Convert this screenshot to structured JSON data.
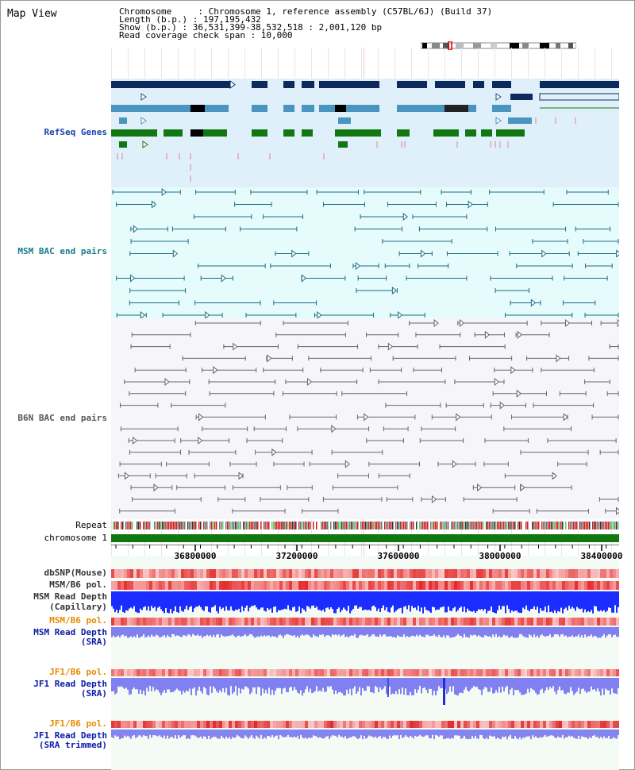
{
  "title": "Map View",
  "info": {
    "line1": "Chromosome     : Chromosome 1, reference assembly (C57BL/6J) (Build 37)",
    "line2": "Length (b.p.) : 197,195,432",
    "line3": "Show (b.p.) : 36,531,399-38,532,518 : 2,001,120 bp",
    "line4": "Read coverage check span : 10,000"
  },
  "labels": {
    "refseq": "RefSeq Genes",
    "msm_bac": "MSM BAC end pairs",
    "b6n_bac": "B6N BAC end pairs",
    "repeat": "Repeat",
    "chromosome": "chromosome 1",
    "dbsnp": "dbSNP(Mouse)",
    "msm_b6_pol": "MSM/B6 pol.",
    "msm_read_depth_cap_1": "MSM Read Depth",
    "msm_read_depth_cap_2": "(Capillary)",
    "msm_b6_pol_2": "MSM/B6 pol.",
    "msm_read_depth_sra_1": "MSM Read Depth",
    "msm_read_depth_sra_2": "(SRA)",
    "jf1_b6_pol": "JF1/B6 pol.",
    "jf1_read_depth_1": "JF1 Read Depth",
    "jf1_read_depth_2": "(SRA)",
    "jf1_b6_pol_2": "JF1/B6 pol.",
    "jf1_trim_1": "JF1 Read Depth",
    "jf1_trim_2": "(SRA trimmed)"
  },
  "axis": {
    "ticks": [
      "36800000",
      "37200000",
      "37600000",
      "38000000",
      "38400000"
    ]
  },
  "colors": {
    "refseq_bg": "#dff0fa",
    "msm_bg": "#e6fbfb",
    "b6n_bg": "#f6f6fa",
    "gene_dark": "#0c2a5c",
    "gene_mid": "#4a94c0",
    "gene_green": "#117711",
    "msm_pair": "#1b6e86",
    "b6n_pair": "#666666",
    "chrom_bar": "#117711",
    "depth_blue": "#1a2cff",
    "depth_light": "#8080f0"
  }
}
